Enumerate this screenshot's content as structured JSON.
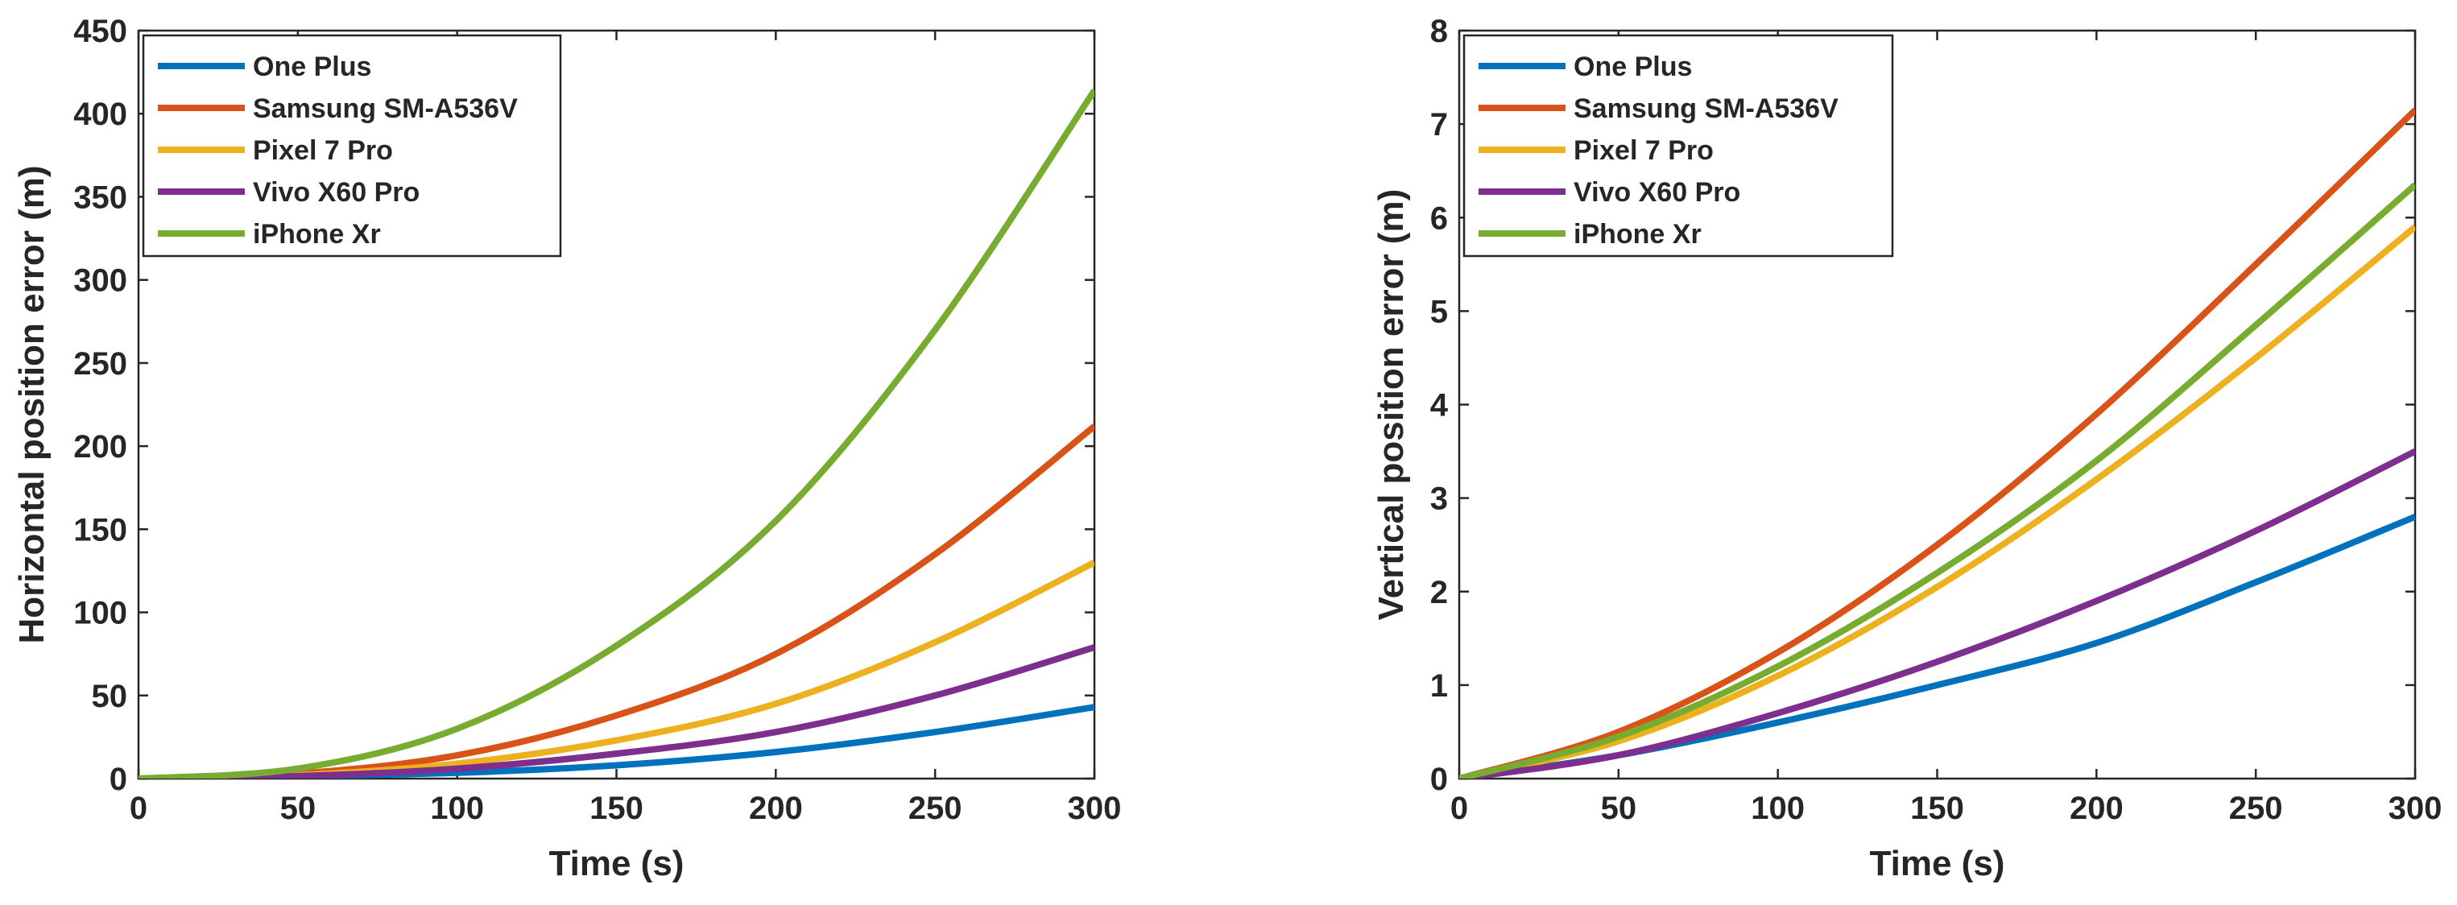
{
  "chart_data": [
    {
      "type": "line",
      "title": "",
      "xlabel": "Time (s)",
      "ylabel": "Horizontal position error (m)",
      "xlim": [
        0,
        300
      ],
      "ylim": [
        0,
        450
      ],
      "xticks": [
        0,
        50,
        100,
        150,
        200,
        250,
        300
      ],
      "yticks": [
        0,
        50,
        100,
        150,
        200,
        250,
        300,
        350,
        400,
        450
      ],
      "grid": false,
      "legend_position": "top-left",
      "x": [
        0,
        50,
        100,
        150,
        200,
        250,
        300
      ],
      "series": [
        {
          "name": "One Plus",
          "color": "#0072BD",
          "values": [
            0,
            1.5,
            3.5,
            8,
            16,
            28,
            43
          ]
        },
        {
          "name": "Samsung SM-A536V",
          "color": "#D95319",
          "values": [
            0,
            3,
            14,
            38,
            75,
            135,
            212
          ]
        },
        {
          "name": "Pixel 7 Pro",
          "color": "#EDB120",
          "values": [
            0,
            2,
            9,
            23,
            45,
            82,
            130
          ]
        },
        {
          "name": "Vivo X60 Pro",
          "color": "#7E2F8E",
          "values": [
            0,
            1.5,
            6,
            15,
            28,
            50,
            79
          ]
        },
        {
          "name": "iPhone Xr",
          "color": "#77AC30",
          "values": [
            0,
            6,
            30,
            80,
            155,
            270,
            414
          ]
        }
      ]
    },
    {
      "type": "line",
      "title": "",
      "xlabel": "Time (s)",
      "ylabel": "Vertical position error (m)",
      "xlim": [
        0,
        300
      ],
      "ylim": [
        0,
        8
      ],
      "xticks": [
        0,
        50,
        100,
        150,
        200,
        250,
        300
      ],
      "yticks": [
        0,
        1,
        2,
        3,
        4,
        5,
        6,
        7,
        8
      ],
      "grid": false,
      "legend_position": "top-left",
      "x": [
        0,
        50,
        100,
        150,
        200,
        250,
        300
      ],
      "series": [
        {
          "name": "One Plus",
          "color": "#0072BD",
          "values": [
            0,
            0.25,
            0.6,
            1.0,
            1.45,
            2.1,
            2.8
          ]
        },
        {
          "name": "Samsung SM-A536V",
          "color": "#D95319",
          "values": [
            0,
            0.5,
            1.35,
            2.5,
            3.9,
            5.5,
            7.15
          ]
        },
        {
          "name": "Pixel 7 Pro",
          "color": "#EDB120",
          "values": [
            0,
            0.4,
            1.1,
            2.05,
            3.2,
            4.5,
            5.9
          ]
        },
        {
          "name": "Vivo X60 Pro",
          "color": "#7E2F8E",
          "values": [
            0,
            0.25,
            0.7,
            1.25,
            1.9,
            2.65,
            3.5
          ]
        },
        {
          "name": "iPhone Xr",
          "color": "#77AC30",
          "values": [
            0,
            0.45,
            1.2,
            2.2,
            3.4,
            4.85,
            6.35
          ]
        }
      ]
    }
  ]
}
